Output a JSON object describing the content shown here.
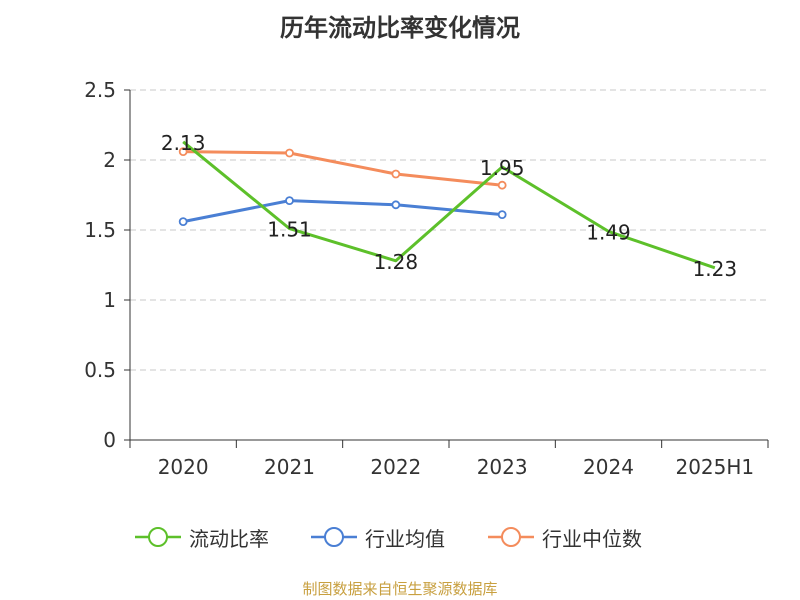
{
  "title": "历年流动比率变化情况",
  "source": "制图数据来自恒生聚源数据库",
  "chart_data": {
    "type": "line",
    "title": "历年流动比率变化情况",
    "categories": [
      "2020",
      "2021",
      "2022",
      "2023",
      "2024",
      "2025H1"
    ],
    "ylim": [
      0,
      2.5
    ],
    "yticks": [
      "0",
      "0.5",
      "1",
      "1.5",
      "2",
      "2.5"
    ],
    "grid": true,
    "legend_position": "bottom",
    "series": [
      {
        "name": "流动比率",
        "color": "#5dc02a",
        "values": [
          2.13,
          1.51,
          1.28,
          1.95,
          1.49,
          1.23
        ],
        "labels": [
          "2.13",
          "1.51",
          "1.28",
          "1.95",
          "1.49",
          "1.23"
        ],
        "markers": false
      },
      {
        "name": "行业均值",
        "color": "#4a7fd4",
        "values": [
          1.56,
          1.71,
          1.68,
          1.61,
          null,
          null
        ],
        "markers": true
      },
      {
        "name": "行业中位数",
        "color": "#f48c5c",
        "values": [
          2.06,
          2.05,
          1.9,
          1.82,
          null,
          null
        ],
        "markers": true
      }
    ]
  }
}
